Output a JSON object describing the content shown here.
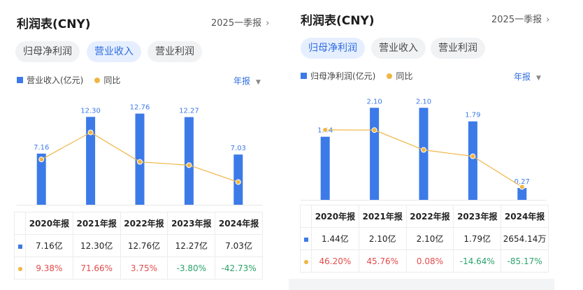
{
  "left": {
    "header": {
      "title": "利润表(CNY)",
      "report": "2025一季报"
    },
    "tabs": [
      {
        "label": "归母净利润",
        "active": false
      },
      {
        "label": "营业收入",
        "active": true
      },
      {
        "label": "营业利润",
        "active": false
      }
    ],
    "legend": {
      "bar": "营业收入(亿元)",
      "line": "同比"
    },
    "period_selector": "年报",
    "chart_data": {
      "type": "bar",
      "categories": [
        "2020年报",
        "2021年报",
        "2022年报",
        "2023年报",
        "2024年报"
      ],
      "series": [
        {
          "name": "营业收入(亿元)",
          "values": [
            7.16,
            12.3,
            12.76,
            12.27,
            7.03
          ],
          "labels": [
            "7.16",
            "12.30",
            "12.76",
            "12.27",
            "7.03"
          ]
        },
        {
          "name": "同比",
          "type": "line",
          "values": [
            9.38,
            71.66,
            3.75,
            -3.8,
            -42.73
          ]
        }
      ]
    },
    "table": {
      "headers": [
        "2020年报",
        "2021年报",
        "2022年报",
        "2023年报",
        "2024年报"
      ],
      "values": [
        "7.16亿",
        "12.30亿",
        "12.76亿",
        "12.27亿",
        "7.03亿"
      ],
      "yoy": [
        "9.38%",
        "71.66%",
        "3.75%",
        "-3.80%",
        "-42.73%"
      ]
    }
  },
  "right": {
    "header": {
      "title": "利润表(CNY)",
      "report": "2025一季报"
    },
    "tabs": [
      {
        "label": "归母净利润",
        "active": true
      },
      {
        "label": "营业收入",
        "active": false
      },
      {
        "label": "营业利润",
        "active": false
      }
    ],
    "legend": {
      "bar": "归母净利润(亿元)",
      "line": "同比"
    },
    "period_selector": "年报",
    "chart_data": {
      "type": "bar",
      "categories": [
        "2020年报",
        "2021年报",
        "2022年报",
        "2023年报",
        "2024年报"
      ],
      "series": [
        {
          "name": "归母净利润(亿元)",
          "values": [
            1.44,
            2.1,
            2.1,
            1.79,
            0.27
          ],
          "labels": [
            "1.44",
            "2.10",
            "2.10",
            "1.79",
            "0.27"
          ]
        },
        {
          "name": "同比",
          "type": "line",
          "values": [
            46.2,
            45.76,
            0.08,
            -14.64,
            -85.17
          ]
        }
      ]
    },
    "table": {
      "headers": [
        "2020年报",
        "2021年报",
        "2022年报",
        "2023年报",
        "2024年报"
      ],
      "values": [
        "1.44亿",
        "2.10亿",
        "2.10亿",
        "1.79亿",
        "2654.14万"
      ],
      "yoy": [
        "46.20%",
        "45.76%",
        "0.08%",
        "-14.64%",
        "-85.17%"
      ]
    }
  },
  "colors": {
    "bar": "#3c7ae8",
    "line": "#f0b543",
    "positive": "#e34b4b",
    "negative": "#2aa36a",
    "accent": "#2e6de0"
  }
}
